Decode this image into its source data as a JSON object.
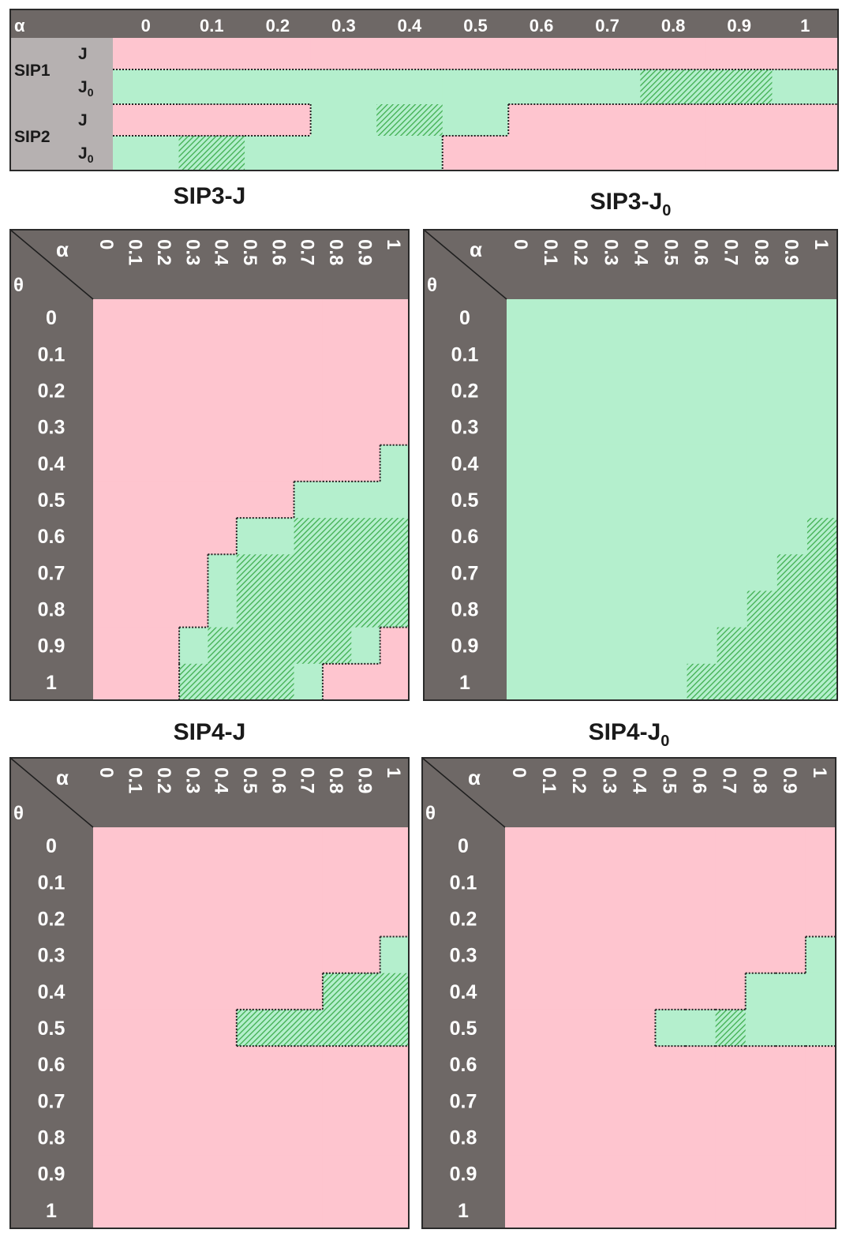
{
  "legend_colors": {
    "red": "#fec5cf",
    "green": "#b4efcd",
    "hatch_green": "#63c870",
    "header": "#6e6866",
    "row_label_bg": "#b6b1b1"
  },
  "chart_data": [
    {
      "type": "heatmap",
      "id": "top",
      "corner_label": "α",
      "columns": [
        "0",
        "0.1",
        "0.2",
        "0.3",
        "0.4",
        "0.5",
        "0.6",
        "0.7",
        "0.8",
        "0.9",
        "1"
      ],
      "groups": [
        "SIP1",
        "SIP2"
      ],
      "row_labels": [
        "J",
        "J0",
        "J",
        "J0"
      ],
      "cells": [
        [
          "R",
          "R",
          "R",
          "R",
          "R",
          "R",
          "R",
          "R",
          "R",
          "R",
          "R"
        ],
        [
          "G",
          "G",
          "G",
          "G",
          "G",
          "G",
          "G",
          "G",
          "H",
          "H",
          "G"
        ],
        [
          "R",
          "R",
          "R",
          "G",
          "H",
          "G",
          "R",
          "R",
          "R",
          "R",
          "R"
        ],
        [
          "G",
          "H",
          "G",
          "G",
          "G",
          "R",
          "R",
          "R",
          "R",
          "R",
          "R"
        ]
      ]
    },
    {
      "type": "heatmap",
      "id": "sip3j",
      "title": "SIP3-J",
      "title_sub": "",
      "alpha_label": "α",
      "theta_label": "θ",
      "alpha": [
        "0",
        "0.1",
        "0.2",
        "0.3",
        "0.4",
        "0.5",
        "0.6",
        "0.7",
        "0.8",
        "0.9",
        "1"
      ],
      "theta": [
        "0",
        "0.1",
        "0.2",
        "0.3",
        "0.4",
        "0.5",
        "0.6",
        "0.7",
        "0.8",
        "0.9",
        "1"
      ],
      "cells": [
        [
          "R",
          "R",
          "R",
          "R",
          "R",
          "R",
          "R",
          "R",
          "R",
          "R",
          "R"
        ],
        [
          "R",
          "R",
          "R",
          "R",
          "R",
          "R",
          "R",
          "R",
          "R",
          "R",
          "R"
        ],
        [
          "R",
          "R",
          "R",
          "R",
          "R",
          "R",
          "R",
          "R",
          "R",
          "R",
          "R"
        ],
        [
          "R",
          "R",
          "R",
          "R",
          "R",
          "R",
          "R",
          "R",
          "R",
          "R",
          "R"
        ],
        [
          "R",
          "R",
          "R",
          "R",
          "R",
          "R",
          "R",
          "R",
          "R",
          "R",
          "G"
        ],
        [
          "R",
          "R",
          "R",
          "R",
          "R",
          "R",
          "R",
          "G",
          "G",
          "G",
          "G"
        ],
        [
          "R",
          "R",
          "R",
          "R",
          "R",
          "G",
          "G",
          "H",
          "H",
          "H",
          "H"
        ],
        [
          "R",
          "R",
          "R",
          "R",
          "G",
          "H",
          "H",
          "H",
          "H",
          "H",
          "H"
        ],
        [
          "R",
          "R",
          "R",
          "R",
          "G",
          "H",
          "H",
          "H",
          "H",
          "H",
          "H"
        ],
        [
          "R",
          "R",
          "R",
          "G",
          "H",
          "H",
          "H",
          "H",
          "H",
          "G",
          "R"
        ],
        [
          "R",
          "R",
          "R",
          "H",
          "H",
          "H",
          "H",
          "G",
          "R",
          "R",
          "R"
        ]
      ]
    },
    {
      "type": "heatmap",
      "id": "sip3j0",
      "title": "SIP3-J",
      "title_sub": "0",
      "alpha_label": "α",
      "theta_label": "θ",
      "alpha": [
        "0",
        "0.1",
        "0.2",
        "0.3",
        "0.4",
        "0.5",
        "0.6",
        "0.7",
        "0.8",
        "0.9",
        "1"
      ],
      "theta": [
        "0",
        "0.1",
        "0.2",
        "0.3",
        "0.4",
        "0.5",
        "0.6",
        "0.7",
        "0.8",
        "0.9",
        "1"
      ],
      "cells": [
        [
          "G",
          "G",
          "G",
          "G",
          "G",
          "G",
          "G",
          "G",
          "G",
          "G",
          "G"
        ],
        [
          "G",
          "G",
          "G",
          "G",
          "G",
          "G",
          "G",
          "G",
          "G",
          "G",
          "G"
        ],
        [
          "G",
          "G",
          "G",
          "G",
          "G",
          "G",
          "G",
          "G",
          "G",
          "G",
          "G"
        ],
        [
          "G",
          "G",
          "G",
          "G",
          "G",
          "G",
          "G",
          "G",
          "G",
          "G",
          "G"
        ],
        [
          "G",
          "G",
          "G",
          "G",
          "G",
          "G",
          "G",
          "G",
          "G",
          "G",
          "G"
        ],
        [
          "G",
          "G",
          "G",
          "G",
          "G",
          "G",
          "G",
          "G",
          "G",
          "G",
          "G"
        ],
        [
          "G",
          "G",
          "G",
          "G",
          "G",
          "G",
          "G",
          "G",
          "G",
          "G",
          "H"
        ],
        [
          "G",
          "G",
          "G",
          "G",
          "G",
          "G",
          "G",
          "G",
          "G",
          "H",
          "H"
        ],
        [
          "G",
          "G",
          "G",
          "G",
          "G",
          "G",
          "G",
          "G",
          "H",
          "H",
          "H"
        ],
        [
          "G",
          "G",
          "G",
          "G",
          "G",
          "G",
          "G",
          "H",
          "H",
          "H",
          "H"
        ],
        [
          "G",
          "G",
          "G",
          "G",
          "G",
          "G",
          "H",
          "H",
          "H",
          "H",
          "H"
        ]
      ]
    },
    {
      "type": "heatmap",
      "id": "sip4j",
      "title": "SIP4-J",
      "title_sub": "",
      "alpha_label": "α",
      "theta_label": "θ",
      "alpha": [
        "0",
        "0.1",
        "0.2",
        "0.3",
        "0.4",
        "0.5",
        "0.6",
        "0.7",
        "0.8",
        "0.9",
        "1"
      ],
      "theta": [
        "0",
        "0.1",
        "0.2",
        "0.3",
        "0.4",
        "0.5",
        "0.6",
        "0.7",
        "0.8",
        "0.9",
        "1"
      ],
      "cells": [
        [
          "R",
          "R",
          "R",
          "R",
          "R",
          "R",
          "R",
          "R",
          "R",
          "R",
          "R"
        ],
        [
          "R",
          "R",
          "R",
          "R",
          "R",
          "R",
          "R",
          "R",
          "R",
          "R",
          "R"
        ],
        [
          "R",
          "R",
          "R",
          "R",
          "R",
          "R",
          "R",
          "R",
          "R",
          "R",
          "R"
        ],
        [
          "R",
          "R",
          "R",
          "R",
          "R",
          "R",
          "R",
          "R",
          "R",
          "R",
          "G"
        ],
        [
          "R",
          "R",
          "R",
          "R",
          "R",
          "R",
          "R",
          "R",
          "H",
          "H",
          "H"
        ],
        [
          "R",
          "R",
          "R",
          "R",
          "R",
          "H",
          "H",
          "H",
          "H",
          "H",
          "H"
        ],
        [
          "R",
          "R",
          "R",
          "R",
          "R",
          "R",
          "R",
          "R",
          "R",
          "R",
          "R"
        ],
        [
          "R",
          "R",
          "R",
          "R",
          "R",
          "R",
          "R",
          "R",
          "R",
          "R",
          "R"
        ],
        [
          "R",
          "R",
          "R",
          "R",
          "R",
          "R",
          "R",
          "R",
          "R",
          "R",
          "R"
        ],
        [
          "R",
          "R",
          "R",
          "R",
          "R",
          "R",
          "R",
          "R",
          "R",
          "R",
          "R"
        ],
        [
          "R",
          "R",
          "R",
          "R",
          "R",
          "R",
          "R",
          "R",
          "R",
          "R",
          "R"
        ]
      ]
    },
    {
      "type": "heatmap",
      "id": "sip4j0",
      "title": "SIP4-J",
      "title_sub": "0",
      "alpha_label": "α",
      "theta_label": "θ",
      "alpha": [
        "0",
        "0.1",
        "0.2",
        "0.3",
        "0.4",
        "0.5",
        "0.6",
        "0.7",
        "0.8",
        "0.9",
        "1"
      ],
      "theta": [
        "0",
        "0.1",
        "0.2",
        "0.3",
        "0.4",
        "0.5",
        "0.6",
        "0.7",
        "0.8",
        "0.9",
        "1"
      ],
      "cells": [
        [
          "R",
          "R",
          "R",
          "R",
          "R",
          "R",
          "R",
          "R",
          "R",
          "R",
          "R"
        ],
        [
          "R",
          "R",
          "R",
          "R",
          "R",
          "R",
          "R",
          "R",
          "R",
          "R",
          "R"
        ],
        [
          "R",
          "R",
          "R",
          "R",
          "R",
          "R",
          "R",
          "R",
          "R",
          "R",
          "R"
        ],
        [
          "R",
          "R",
          "R",
          "R",
          "R",
          "R",
          "R",
          "R",
          "R",
          "R",
          "G"
        ],
        [
          "R",
          "R",
          "R",
          "R",
          "R",
          "R",
          "R",
          "R",
          "G",
          "G",
          "G"
        ],
        [
          "R",
          "R",
          "R",
          "R",
          "R",
          "G",
          "G",
          "H",
          "G",
          "G",
          "G"
        ],
        [
          "R",
          "R",
          "R",
          "R",
          "R",
          "R",
          "R",
          "R",
          "R",
          "R",
          "R"
        ],
        [
          "R",
          "R",
          "R",
          "R",
          "R",
          "R",
          "R",
          "R",
          "R",
          "R",
          "R"
        ],
        [
          "R",
          "R",
          "R",
          "R",
          "R",
          "R",
          "R",
          "R",
          "R",
          "R",
          "R"
        ],
        [
          "R",
          "R",
          "R",
          "R",
          "R",
          "R",
          "R",
          "R",
          "R",
          "R",
          "R"
        ],
        [
          "R",
          "R",
          "R",
          "R",
          "R",
          "R",
          "R",
          "R",
          "R",
          "R",
          "R"
        ]
      ]
    }
  ]
}
